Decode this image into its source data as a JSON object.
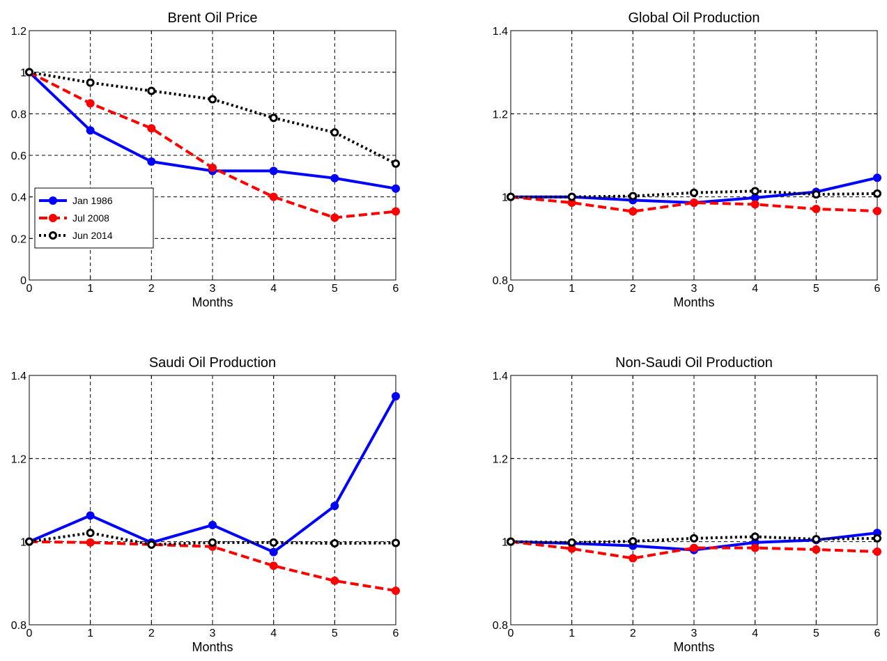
{
  "chart_data": [
    {
      "type": "line",
      "title": "Brent Oil Price",
      "xlabel": "Months",
      "ylabel": "",
      "x": [
        0,
        1,
        2,
        3,
        4,
        5,
        6
      ],
      "xlim": [
        0,
        6
      ],
      "ylim": [
        0,
        1.2
      ],
      "xticks": [
        "0",
        "1",
        "2",
        "3",
        "4",
        "5",
        "6"
      ],
      "yticks": [
        "0",
        "0.2",
        "0.4",
        "0.6",
        "0.8",
        "1",
        "1.2"
      ],
      "ytick_values": [
        0,
        0.2,
        0.4,
        0.6,
        0.8,
        1.0,
        1.2
      ],
      "grid": true,
      "legend": "lower-left",
      "series": [
        {
          "name": "Jan 1986",
          "color": "#0000ff",
          "dash": "solid",
          "values": [
            1.0,
            0.72,
            0.57,
            0.525,
            0.525,
            0.49,
            0.44
          ]
        },
        {
          "name": "Jul 2008",
          "color": "#ff0000",
          "dash": "dashed",
          "values": [
            1.0,
            0.85,
            0.73,
            0.54,
            0.4,
            0.3,
            0.33
          ]
        },
        {
          "name": "Jun 2014",
          "color": "#000000",
          "dash": "dotted",
          "values": [
            1.0,
            0.95,
            0.91,
            0.87,
            0.78,
            0.71,
            0.56
          ]
        }
      ]
    },
    {
      "type": "line",
      "title": "Global Oil Production",
      "xlabel": "Months",
      "ylabel": "",
      "x": [
        0,
        1,
        2,
        3,
        4,
        5,
        6
      ],
      "xlim": [
        0,
        6
      ],
      "ylim": [
        0.8,
        1.4
      ],
      "xticks": [
        "0",
        "1",
        "2",
        "3",
        "4",
        "5",
        "6"
      ],
      "yticks": [
        "0.8",
        "1",
        "1.2",
        "1.4"
      ],
      "ytick_values": [
        0.8,
        1.0,
        1.2,
        1.4
      ],
      "grid": true,
      "series": [
        {
          "name": "Jan 1986",
          "color": "#0000ff",
          "dash": "solid",
          "values": [
            1.0,
            1.0,
            0.992,
            0.986,
            0.998,
            1.012,
            1.046
          ]
        },
        {
          "name": "Jul 2008",
          "color": "#ff0000",
          "dash": "dashed",
          "values": [
            1.0,
            0.986,
            0.965,
            0.986,
            0.982,
            0.971,
            0.966
          ]
        },
        {
          "name": "Jun 2014",
          "color": "#000000",
          "dash": "dotted",
          "values": [
            1.0,
            1.0,
            1.002,
            1.01,
            1.014,
            1.006,
            1.008
          ]
        }
      ]
    },
    {
      "type": "line",
      "title": "Saudi Oil Production",
      "xlabel": "Months",
      "ylabel": "",
      "x": [
        0,
        1,
        2,
        3,
        4,
        5,
        6
      ],
      "xlim": [
        0,
        6
      ],
      "ylim": [
        0.8,
        1.4
      ],
      "xticks": [
        "0",
        "1",
        "2",
        "3",
        "4",
        "5",
        "6"
      ],
      "yticks": [
        "0.8",
        "1",
        "1.2",
        "1.4"
      ],
      "ytick_values": [
        0.8,
        1.0,
        1.2,
        1.4
      ],
      "grid": true,
      "series": [
        {
          "name": "Jan 1986",
          "color": "#0000ff",
          "dash": "solid",
          "values": [
            1.0,
            1.063,
            0.998,
            1.04,
            0.975,
            1.086,
            1.35
          ]
        },
        {
          "name": "Jul 2008",
          "color": "#ff0000",
          "dash": "dashed",
          "values": [
            1.0,
            0.998,
            0.993,
            0.988,
            0.942,
            0.906,
            0.882
          ]
        },
        {
          "name": "Jun 2014",
          "color": "#000000",
          "dash": "dotted",
          "values": [
            1.0,
            1.021,
            0.993,
            0.998,
            0.998,
            0.996,
            0.997
          ]
        }
      ]
    },
    {
      "type": "line",
      "title": "Non-Saudi Oil Production",
      "xlabel": "Months",
      "ylabel": "",
      "x": [
        0,
        1,
        2,
        3,
        4,
        5,
        6
      ],
      "xlim": [
        0,
        6
      ],
      "ylim": [
        0.8,
        1.4
      ],
      "xticks": [
        "0",
        "1",
        "2",
        "3",
        "4",
        "5",
        "6"
      ],
      "yticks": [
        "0.8",
        "1",
        "1.2",
        "1.4"
      ],
      "ytick_values": [
        0.8,
        1.0,
        1.2,
        1.4
      ],
      "grid": true,
      "series": [
        {
          "name": "Jan 1986",
          "color": "#0000ff",
          "dash": "solid",
          "values": [
            1.0,
            0.996,
            0.99,
            0.98,
            0.998,
            1.004,
            1.021
          ]
        },
        {
          "name": "Jul 2008",
          "color": "#ff0000",
          "dash": "dashed",
          "values": [
            1.0,
            0.983,
            0.96,
            0.985,
            0.985,
            0.981,
            0.976
          ]
        },
        {
          "name": "Jun 2014",
          "color": "#000000",
          "dash": "dotted",
          "values": [
            1.0,
            0.998,
            1.001,
            1.008,
            1.012,
            1.006,
            1.008
          ]
        }
      ]
    }
  ]
}
